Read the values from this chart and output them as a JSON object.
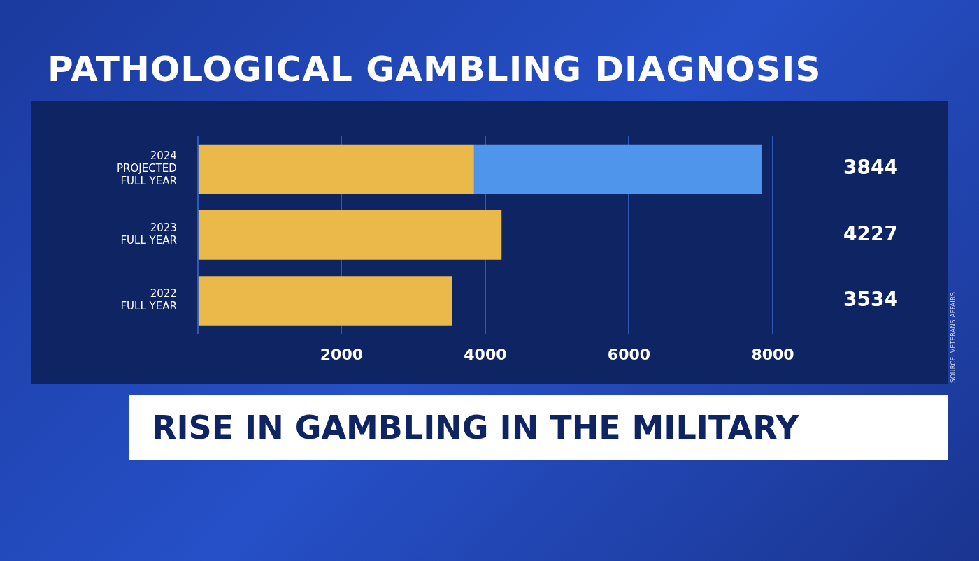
{
  "chart_data": {
    "type": "bar",
    "orientation": "horizontal",
    "stacked": true,
    "title": "PATHOLOGICAL GAMBLING DIAGNOSIS",
    "subtitle": "RISE IN GAMBLING IN THE MILITARY",
    "annotations": [
      "SOURCE: VETERANS AFFAIRS"
    ],
    "categories": [
      "2024\nPROJECTED\nFULL YEAR",
      "2023\nFULL YEAR",
      "2022\nFULL YEAR"
    ],
    "series": [
      {
        "color": "#eab94a",
        "values": [
          3844,
          4227,
          3534
        ],
        "value_labels": [
          "3844",
          "4227",
          "3534"
        ]
      },
      {
        "color": "#4f95ec",
        "values": [
          4000,
          null,
          null
        ]
      }
    ],
    "xlim": [
      0,
      8000
    ],
    "xticks": [
      {
        "value": 0,
        "label": null
      },
      2000,
      4000,
      6000,
      8000
    ],
    "grid": "x",
    "legend": false
  }
}
